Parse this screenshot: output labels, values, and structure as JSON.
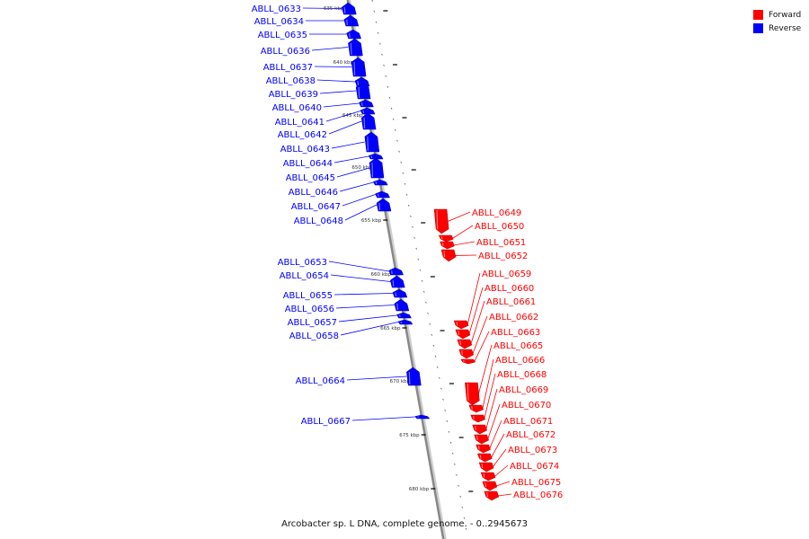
{
  "legend": {
    "forward_label": "Forward",
    "reverse_label": "Reverse",
    "forward_color": "#ff0000",
    "reverse_color": "#0000ff"
  },
  "caption": "Arcobacter sp. L DNA, complete genome. - 0..2945673",
  "axis_color": "#888888",
  "scale_marks": [
    {
      "label": "635 kbp"
    },
    {
      "label": "640 kbp"
    },
    {
      "label": "645 kbp"
    },
    {
      "label": "650 kbp"
    },
    {
      "label": "655 kbp"
    },
    {
      "label": "660 kbp"
    },
    {
      "label": "665 kbp"
    },
    {
      "label": "670 kbp"
    },
    {
      "label": "675 kbp"
    },
    {
      "label": "680 kbp"
    }
  ],
  "genes": [
    {
      "name": "ABLL_0633",
      "strand": "reverse"
    },
    {
      "name": "ABLL_0634",
      "strand": "reverse"
    },
    {
      "name": "ABLL_0635",
      "strand": "reverse"
    },
    {
      "name": "ABLL_0636",
      "strand": "reverse"
    },
    {
      "name": "ABLL_0637",
      "strand": "reverse"
    },
    {
      "name": "ABLL_0638",
      "strand": "reverse"
    },
    {
      "name": "ABLL_0639",
      "strand": "reverse"
    },
    {
      "name": "ABLL_0640",
      "strand": "reverse"
    },
    {
      "name": "ABLL_0641",
      "strand": "reverse"
    },
    {
      "name": "ABLL_0642",
      "strand": "reverse"
    },
    {
      "name": "ABLL_0643",
      "strand": "reverse"
    },
    {
      "name": "ABLL_0644",
      "strand": "reverse"
    },
    {
      "name": "ABLL_0645",
      "strand": "reverse"
    },
    {
      "name": "ABLL_0646",
      "strand": "reverse"
    },
    {
      "name": "ABLL_0647",
      "strand": "reverse"
    },
    {
      "name": "ABLL_0648",
      "strand": "reverse"
    },
    {
      "name": "ABLL_0649",
      "strand": "forward"
    },
    {
      "name": "ABLL_0650",
      "strand": "forward"
    },
    {
      "name": "ABLL_0651",
      "strand": "forward"
    },
    {
      "name": "ABLL_0652",
      "strand": "forward"
    },
    {
      "name": "ABLL_0653",
      "strand": "reverse"
    },
    {
      "name": "ABLL_0654",
      "strand": "reverse"
    },
    {
      "name": "ABLL_0655",
      "strand": "reverse"
    },
    {
      "name": "ABLL_0656",
      "strand": "reverse"
    },
    {
      "name": "ABLL_0657",
      "strand": "reverse"
    },
    {
      "name": "ABLL_0658",
      "strand": "reverse"
    },
    {
      "name": "ABLL_0659",
      "strand": "forward"
    },
    {
      "name": "ABLL_0660",
      "strand": "forward"
    },
    {
      "name": "ABLL_0661",
      "strand": "forward"
    },
    {
      "name": "ABLL_0662",
      "strand": "forward"
    },
    {
      "name": "ABLL_0663",
      "strand": "forward"
    },
    {
      "name": "ABLL_0664",
      "strand": "reverse"
    },
    {
      "name": "ABLL_0665",
      "strand": "forward"
    },
    {
      "name": "ABLL_0666",
      "strand": "forward"
    },
    {
      "name": "ABLL_0667",
      "strand": "reverse"
    },
    {
      "name": "ABLL_0668",
      "strand": "forward"
    },
    {
      "name": "ABLL_0669",
      "strand": "forward"
    },
    {
      "name": "ABLL_0670",
      "strand": "forward"
    },
    {
      "name": "ABLL_0671",
      "strand": "forward"
    },
    {
      "name": "ABLL_0672",
      "strand": "forward"
    },
    {
      "name": "ABLL_0673",
      "strand": "forward"
    },
    {
      "name": "ABLL_0674",
      "strand": "forward"
    },
    {
      "name": "ABLL_0675",
      "strand": "forward"
    },
    {
      "name": "ABLL_0676",
      "strand": "forward"
    }
  ]
}
